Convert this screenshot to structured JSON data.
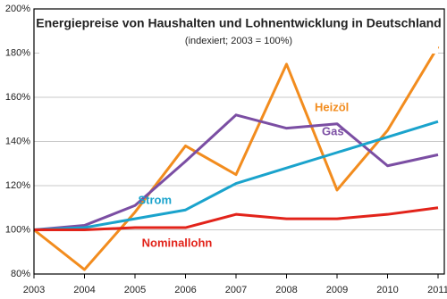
{
  "chart_data": {
    "type": "line",
    "title": "Energiepreise von Haushalten und Lohnentwicklung in Deutschland",
    "subtitle": "(indexiert; 2003 = 100%)",
    "categories": [
      "2003",
      "2004",
      "2005",
      "2006",
      "2007",
      "2008",
      "2009",
      "2010",
      "2011"
    ],
    "series": [
      {
        "name": "Heizöl",
        "color": "#f28c1e",
        "values": [
          100,
          82,
          108,
          138,
          125,
          175,
          118,
          145,
          183
        ]
      },
      {
        "name": "Gas",
        "color": "#7b4ea3",
        "values": [
          100,
          102,
          111,
          131,
          152,
          146,
          148,
          129,
          134
        ]
      },
      {
        "name": "Strom",
        "color": "#1aa3cc",
        "values": [
          100,
          101,
          105,
          109,
          121,
          128,
          135,
          142,
          149
        ]
      },
      {
        "name": "Nominallohn",
        "color": "#e2231a",
        "values": [
          100,
          100,
          101,
          101,
          107,
          105,
          105,
          107,
          110
        ]
      }
    ],
    "ylim": [
      80,
      200
    ],
    "yticks": [
      {
        "value": 80,
        "label": "80%"
      },
      {
        "value": 100,
        "label": "100%"
      },
      {
        "value": 120,
        "label": "120%"
      },
      {
        "value": 140,
        "label": "140%"
      },
      {
        "value": 160,
        "label": "160%"
      },
      {
        "value": 180,
        "label": "180%"
      },
      {
        "value": 200,
        "label": "200%"
      }
    ],
    "grid": true
  }
}
